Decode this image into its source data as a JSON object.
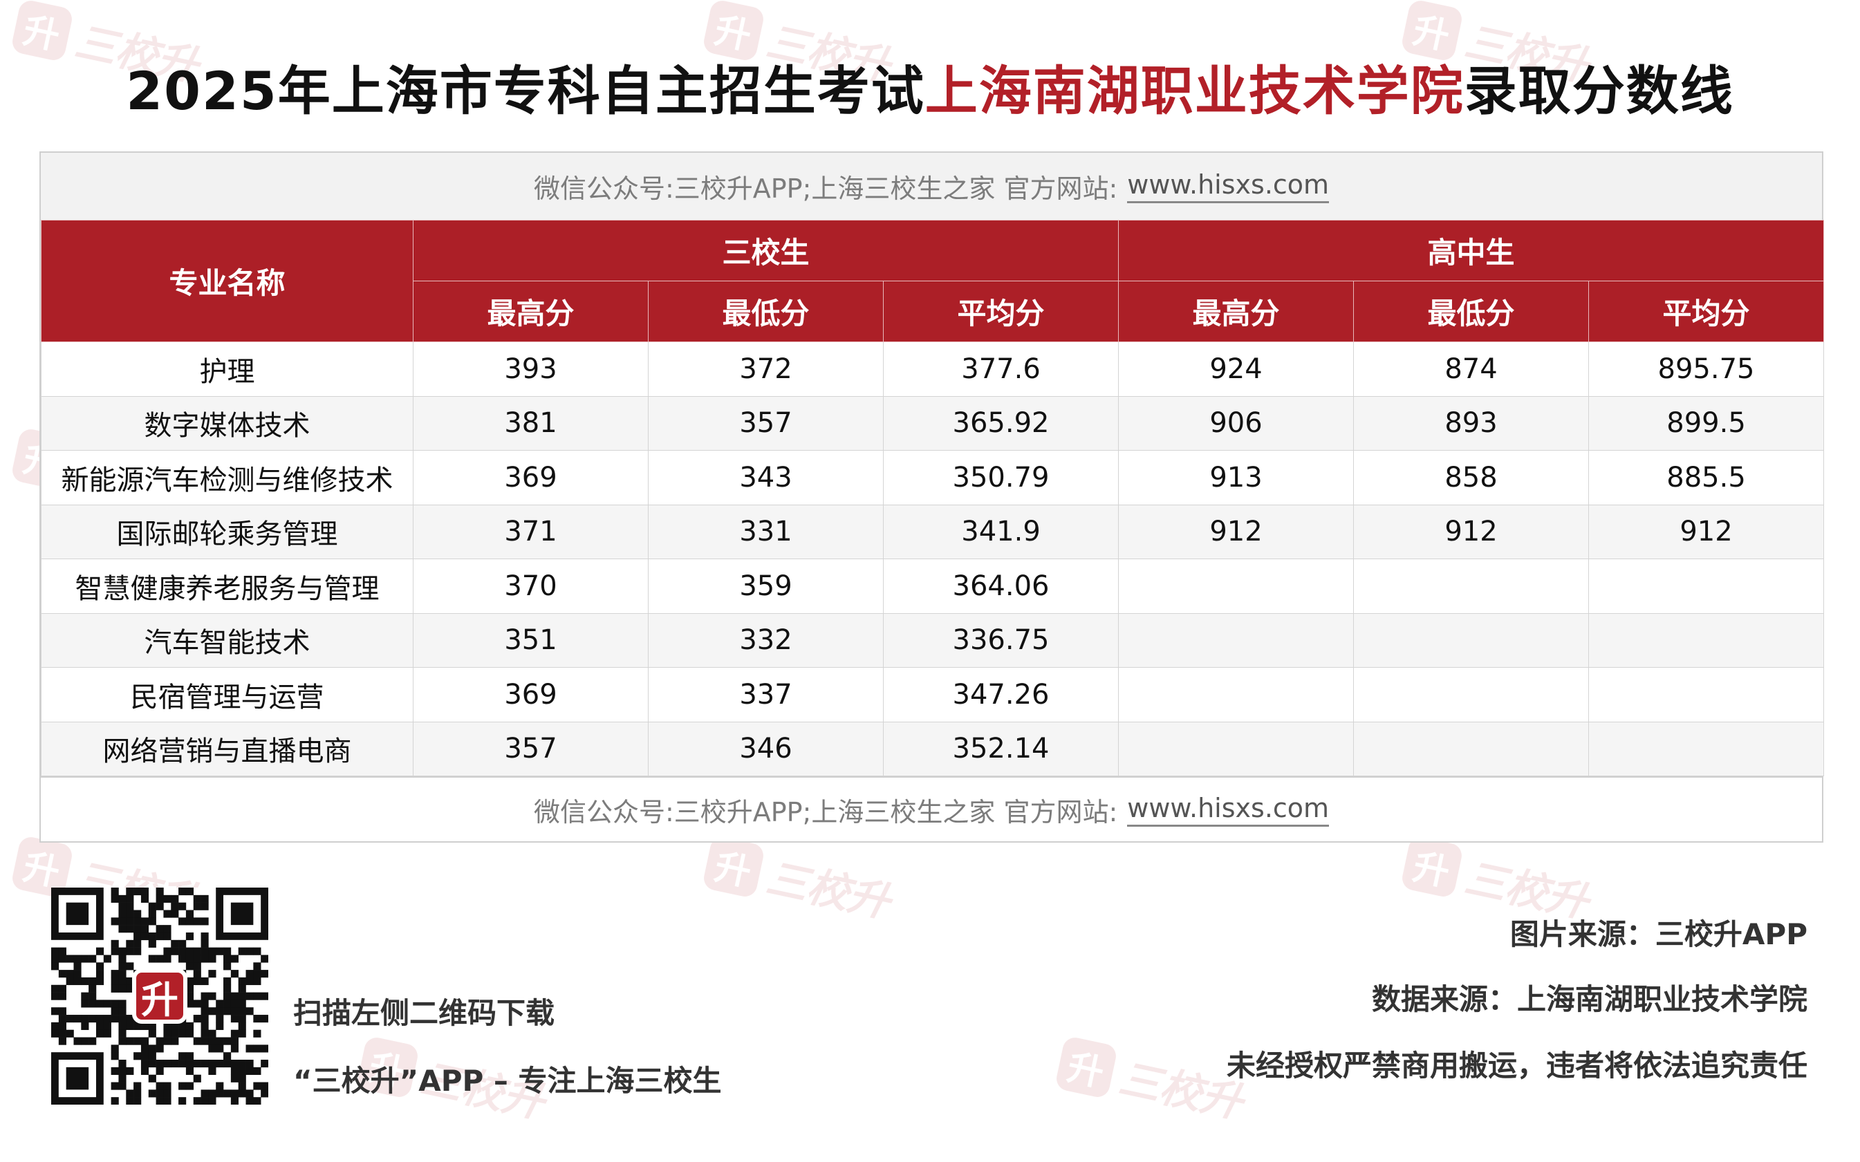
{
  "title": {
    "prefix": "2025年上海市专科自主招生考试",
    "highlight": "上海南湖职业技术学院",
    "suffix": "录取分数线"
  },
  "banner": {
    "text": "微信公众号:三校升APP;上海三校生之家 官方网站:",
    "url": "www.hisxs.com"
  },
  "watermark": {
    "badge": "升",
    "text": "三校升"
  },
  "table": {
    "major_header": "专业名称",
    "group_a": "三校生",
    "group_b": "高中生",
    "sub_headers": [
      "最高分",
      "最低分",
      "平均分",
      "最高分",
      "最低分",
      "平均分"
    ],
    "rows": [
      [
        "护理",
        "393",
        "372",
        "377.6",
        "924",
        "874",
        "895.75"
      ],
      [
        "数字媒体技术",
        "381",
        "357",
        "365.92",
        "906",
        "893",
        "899.5"
      ],
      [
        "新能源汽车检测与维修技术",
        "369",
        "343",
        "350.79",
        "913",
        "858",
        "885.5"
      ],
      [
        "国际邮轮乘务管理",
        "371",
        "331",
        "341.9",
        "912",
        "912",
        "912"
      ],
      [
        "智慧健康养老服务与管理",
        "370",
        "359",
        "364.06",
        "",
        "",
        ""
      ],
      [
        "汽车智能技术",
        "351",
        "332",
        "336.75",
        "",
        "",
        ""
      ],
      [
        "民宿管理与运营",
        "369",
        "337",
        "347.26",
        "",
        "",
        ""
      ],
      [
        "网络营销与直播电商",
        "357",
        "346",
        "352.14",
        "",
        "",
        ""
      ]
    ]
  },
  "footer": {
    "qr_badge": "升",
    "scan_text": "扫描左侧二维码下载",
    "slogan": "“三校升”APP – 专注上海三校生",
    "credits": [
      "图片来源：三校升APP",
      "数据来源：上海南湖职业技术学院",
      "未经授权严禁商用搬运，违者将依法追究责任"
    ]
  },
  "colors": {
    "accent": "#b22028",
    "header_bg": "#ac1f27"
  }
}
